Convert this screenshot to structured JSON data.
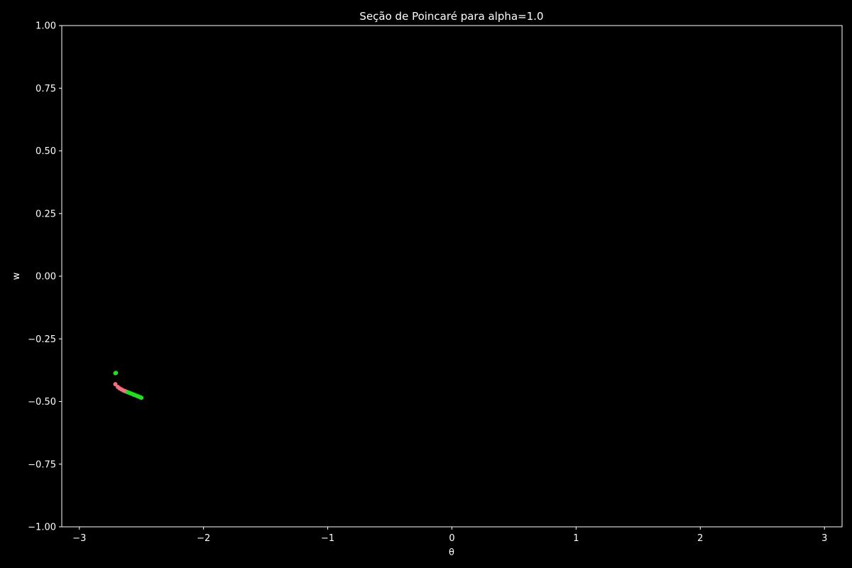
{
  "chart_data": {
    "type": "scatter",
    "title": "Seção de Poincaré para alpha=1.0",
    "xlabel": "θ",
    "ylabel": "w",
    "xlim": [
      -3.1416,
      3.1416
    ],
    "ylim": [
      -1.0,
      1.0
    ],
    "xticks": [
      -3,
      -2,
      -1,
      0,
      1,
      2,
      3
    ],
    "xtick_labels": [
      "−3",
      "−2",
      "−1",
      "0",
      "1",
      "2",
      "3"
    ],
    "yticks": [
      1.0,
      0.75,
      0.5,
      0.25,
      0.0,
      -0.25,
      -0.5,
      -0.75,
      -1.0
    ],
    "ytick_labels": [
      "1.00",
      "0.75",
      "0.50",
      "0.25",
      "0.00",
      "−0.25",
      "−0.50",
      "−0.75",
      "−1.00"
    ],
    "grid": false,
    "background": "#000000",
    "foreground": "#ffffff",
    "series": [
      {
        "color": "#f07080",
        "points": [
          [
            -2.71,
            -0.431
          ],
          [
            -2.69,
            -0.442
          ],
          [
            -2.675,
            -0.448
          ],
          [
            -2.66,
            -0.452
          ],
          [
            -2.645,
            -0.456
          ],
          [
            -2.63,
            -0.459
          ],
          [
            -2.62,
            -0.461
          ]
        ]
      },
      {
        "color": "#22dd22",
        "points": [
          [
            -2.71,
            -0.387
          ],
          [
            -2.705,
            -0.386
          ],
          [
            -2.61,
            -0.463
          ],
          [
            -2.6,
            -0.465
          ],
          [
            -2.59,
            -0.467
          ],
          [
            -2.58,
            -0.469
          ],
          [
            -2.57,
            -0.471
          ],
          [
            -2.56,
            -0.473
          ],
          [
            -2.55,
            -0.475
          ],
          [
            -2.54,
            -0.477
          ],
          [
            -2.53,
            -0.479
          ],
          [
            -2.52,
            -0.481
          ],
          [
            -2.51,
            -0.483
          ],
          [
            -2.505,
            -0.484
          ],
          [
            -2.5,
            -0.485
          ]
        ]
      }
    ]
  }
}
